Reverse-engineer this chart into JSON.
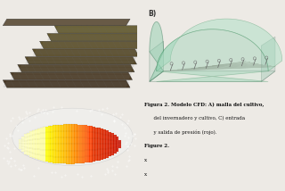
{
  "background_color": "#edeae5",
  "caption_line1": "Figura 2. Modelo CFD: A) malla del cultivo,",
  "caption_line2": "      del invernadero y cultivo, C) entrada",
  "caption_line3": "      y salida de presión (rojo).",
  "caption_line4": "Figure 2.",
  "caption_line5": "x",
  "caption_line6": "x",
  "panel_bg_tl": "#b8cfe0",
  "panel_bg_tr": "#c5dae8",
  "panel_bg_bl": "#b8ccd8",
  "panel_border": "#aabbcc"
}
